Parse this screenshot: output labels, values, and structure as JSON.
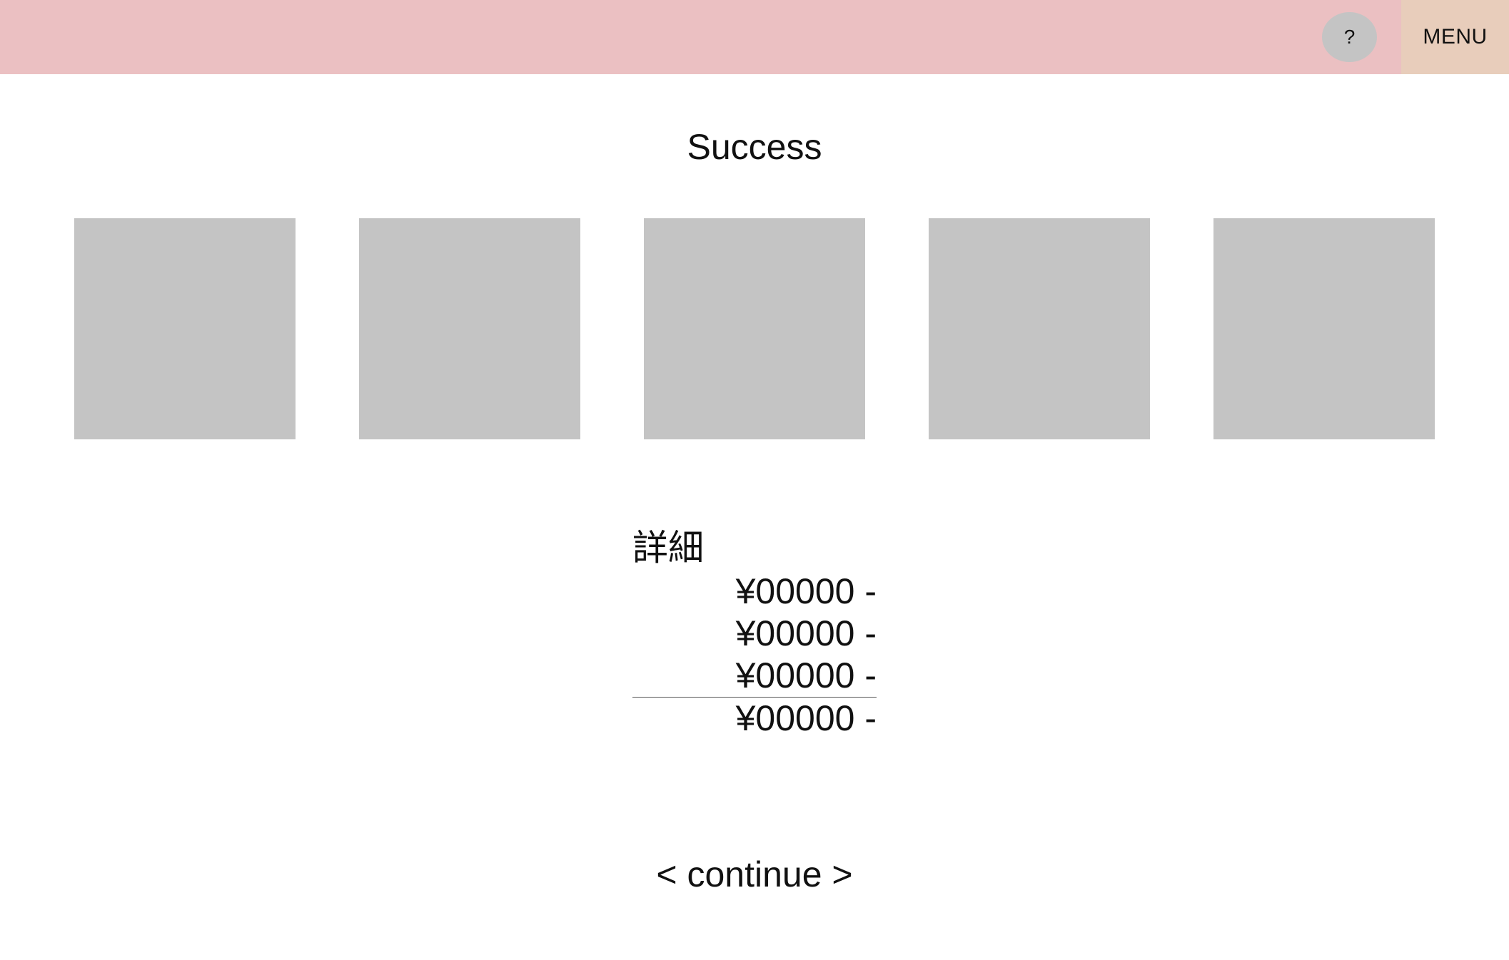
{
  "header": {
    "help_label": "?",
    "menu_label": "MENU",
    "background_color": "#ebc0c2",
    "menu_color": "#e8cdbb"
  },
  "main": {
    "title": "Success",
    "tiles": [
      {
        "label": ""
      },
      {
        "label": ""
      },
      {
        "label": ""
      },
      {
        "label": ""
      },
      {
        "label": ""
      }
    ],
    "tile_color": "#c4c4c4"
  },
  "details": {
    "heading": "詳細",
    "line_items": [
      "¥00000 -",
      "¥00000 -",
      "¥00000 -"
    ],
    "total": "¥00000 -"
  },
  "footer": {
    "continue_label": "< continue >"
  }
}
